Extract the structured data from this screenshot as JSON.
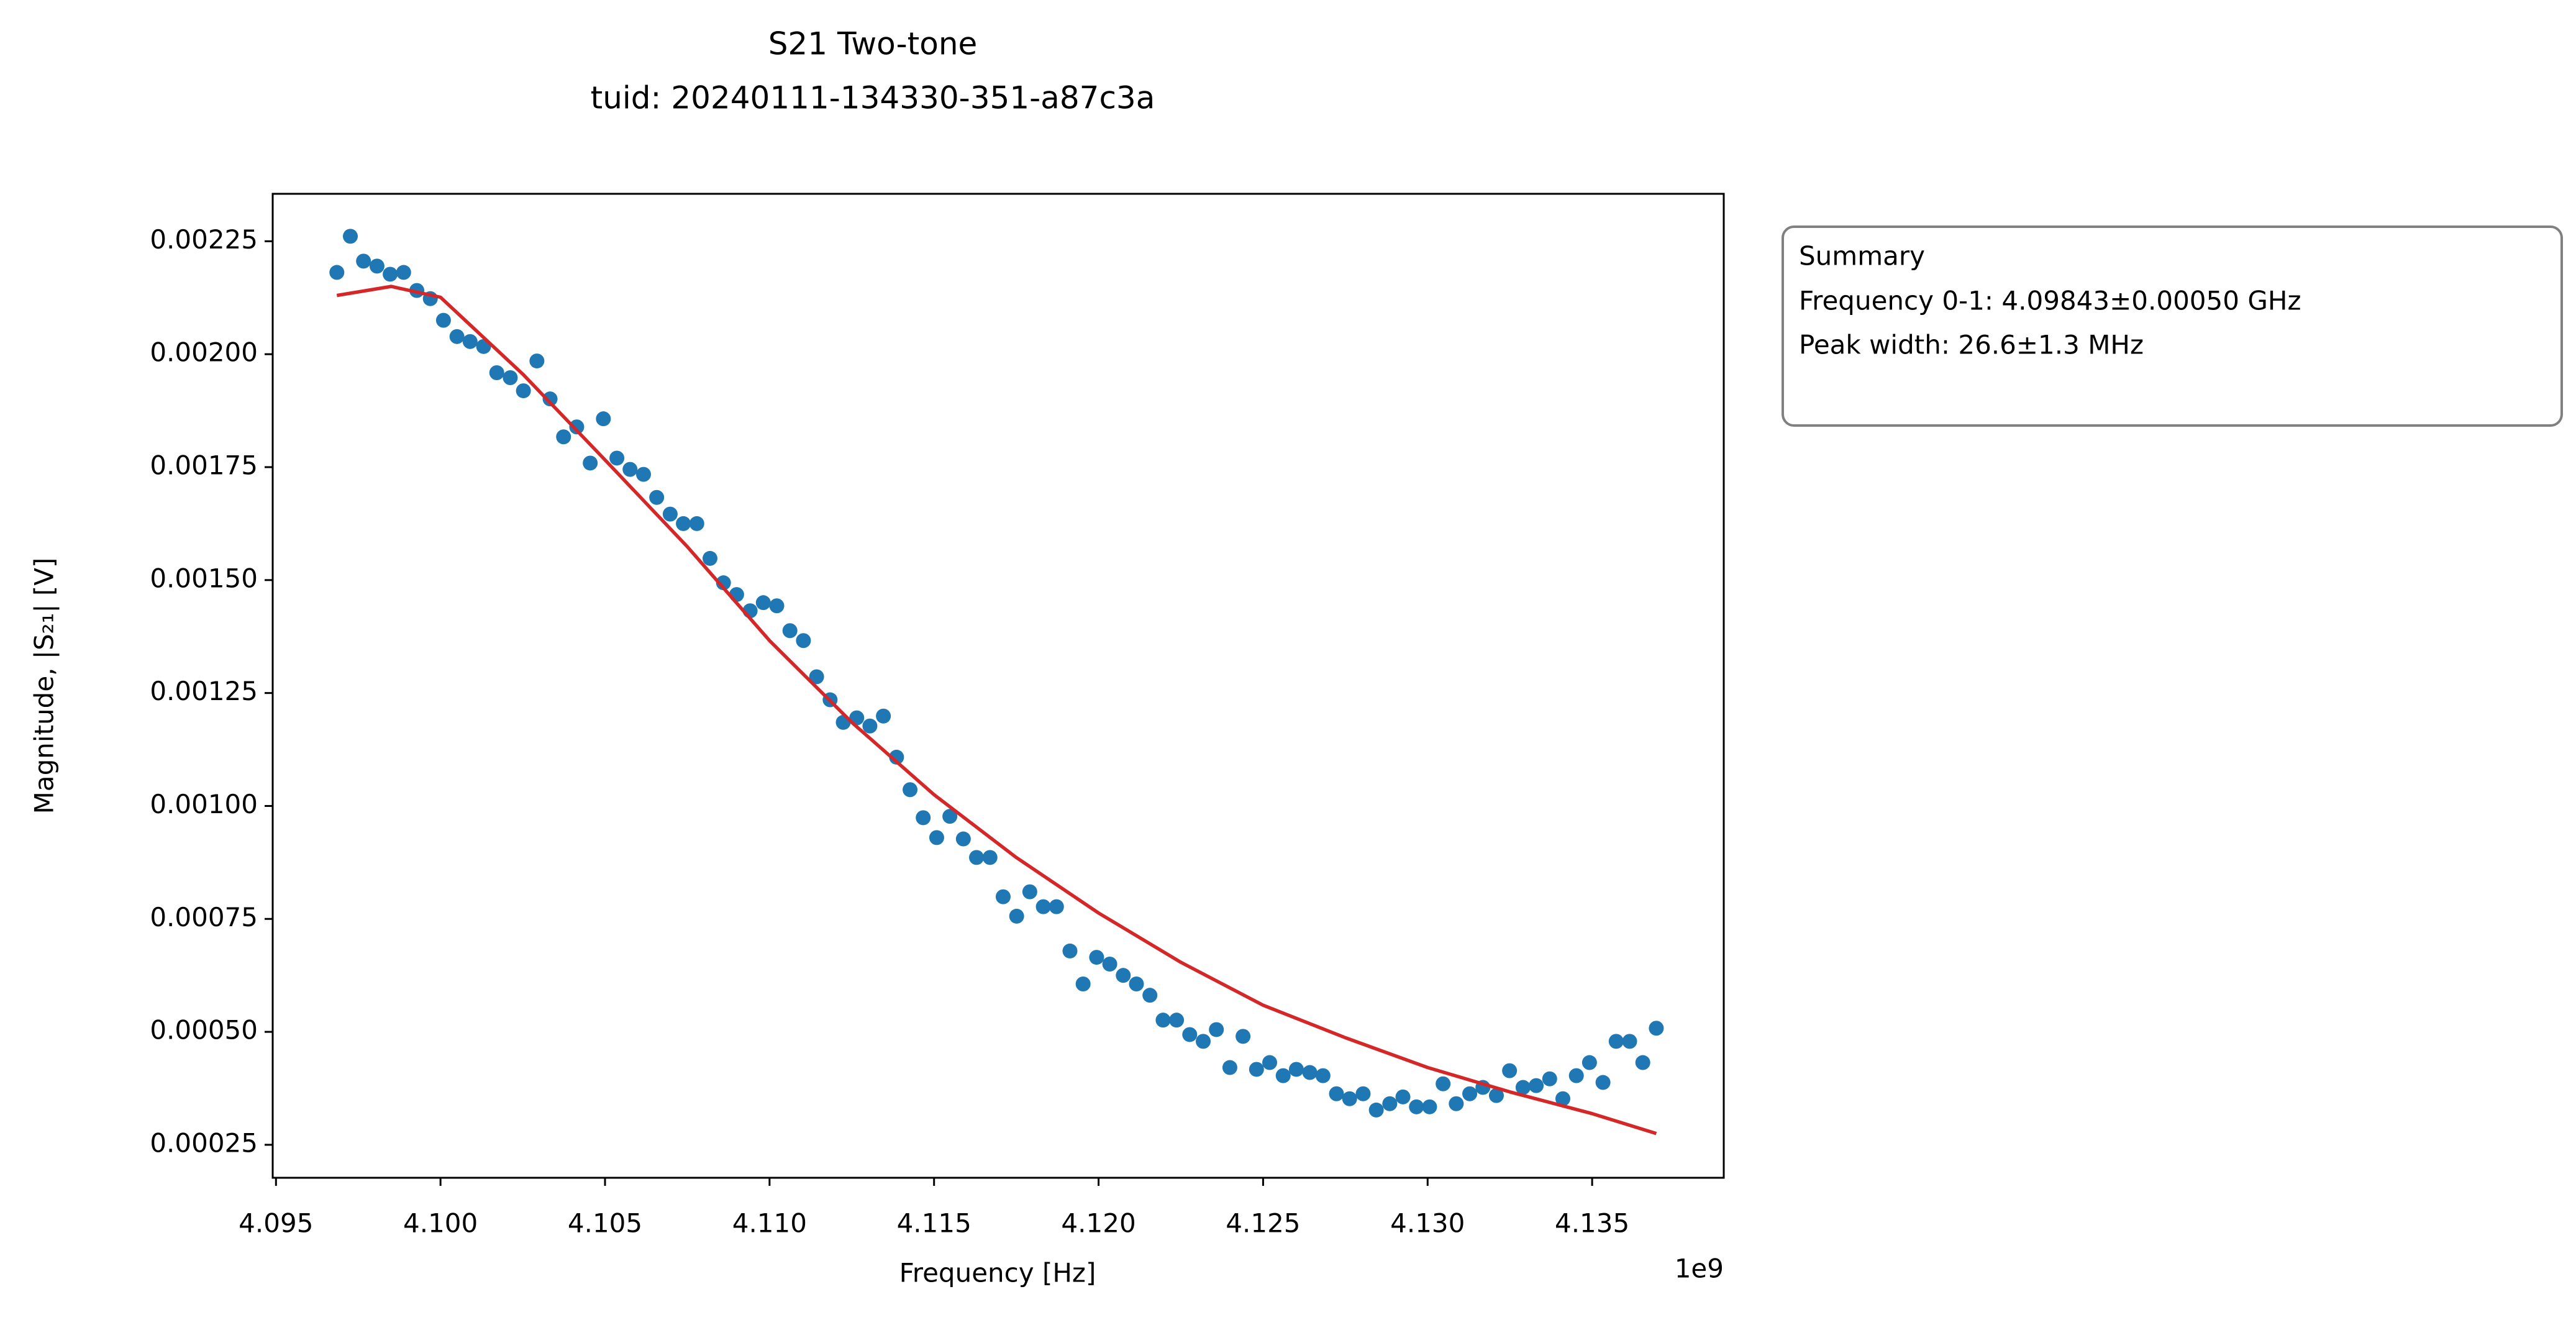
{
  "chart_data": {
    "type": "scatter",
    "title": "S21 Two-tone",
    "subtitle": "tuid: 20240111-134330-351-a87c3a",
    "x_label": "Frequency [Hz]",
    "y_label": "Magnitude, |S₂₁| [V]",
    "x_offset": "1e9",
    "summary": [
      "Summary",
      "Frequency 0-1: 4.09843±0.00050 GHz",
      "Peak width: 26.6±1.3 MHz"
    ],
    "xlim": [
      4.0949,
      4.139
    ],
    "ylim": [
      0.000177,
      0.002355
    ],
    "xticks": [
      4.095,
      {
        "value": 4.1,
        "label": "4.100"
      },
      4.105,
      {
        "value": 4.11,
        "label": "4.110"
      },
      4.115,
      {
        "value": 4.12,
        "label": "4.120"
      },
      4.125,
      {
        "value": 4.13,
        "label": "4.130"
      },
      4.135
    ],
    "yticks": [
      0.00025,
      {
        "value": 0.0005,
        "label": "0.00050"
      },
      0.00075,
      {
        "value": 0.001,
        "label": "0.00100"
      },
      0.00125,
      {
        "value": 0.0015,
        "label": "0.00150"
      },
      0.00175,
      {
        "value": 0.002,
        "label": "0.00200"
      },
      0.00225
    ],
    "series": [
      {
        "color": "#1f77b4",
        "style": "points",
        "x": [
          4.09685,
          4.09726,
          4.09766,
          4.09807,
          4.09847,
          4.09888,
          4.09928,
          4.09969,
          4.10009,
          4.1005,
          4.1009,
          4.10131,
          4.10171,
          4.10212,
          4.10252,
          4.10293,
          4.10333,
          4.10374,
          4.10414,
          4.10455,
          4.10495,
          4.10536,
          4.10576,
          4.10617,
          4.10657,
          4.10698,
          4.10738,
          4.10779,
          4.10819,
          4.1086,
          4.109,
          4.10941,
          4.10981,
          4.11022,
          4.11062,
          4.11103,
          4.11143,
          4.11184,
          4.11224,
          4.11265,
          4.11305,
          4.11346,
          4.11386,
          4.11427,
          4.11467,
          4.11508,
          4.11548,
          4.11589,
          4.11629,
          4.1167,
          4.1171,
          4.11751,
          4.11791,
          4.11832,
          4.11872,
          4.11913,
          4.11953,
          4.11994,
          4.12034,
          4.12075,
          4.12115,
          4.12156,
          4.12196,
          4.12237,
          4.12277,
          4.12318,
          4.12358,
          4.12399,
          4.12439,
          4.1248,
          4.1252,
          4.12561,
          4.12601,
          4.12642,
          4.12682,
          4.12723,
          4.12763,
          4.12804,
          4.12844,
          4.12885,
          4.12925,
          4.12966,
          4.13006,
          4.13047,
          4.13087,
          4.13128,
          4.13168,
          4.13209,
          4.13249,
          4.1329,
          4.1333,
          4.13371,
          4.13411,
          4.13452,
          4.13492,
          4.13533,
          4.13573,
          4.13614,
          4.13654,
          4.13695
        ],
        "values": [
          0.002181,
          0.002261,
          0.002206,
          0.002195,
          0.002177,
          0.002181,
          0.002141,
          0.002123,
          0.002075,
          0.002039,
          0.002028,
          0.002017,
          0.001959,
          0.001948,
          0.001919,
          0.001985,
          0.001901,
          0.001817,
          0.001839,
          0.001759,
          0.001857,
          0.00177,
          0.001745,
          0.001734,
          0.001683,
          0.001646,
          0.001625,
          0.001625,
          0.001548,
          0.001494,
          0.001468,
          0.001432,
          0.00145,
          0.001443,
          0.001388,
          0.001366,
          0.001286,
          0.001235,
          0.001185,
          0.001195,
          0.001177,
          0.001199,
          0.001108,
          0.001036,
          0.000974,
          0.00093,
          0.000977,
          0.000927,
          0.000886,
          0.000886,
          0.000799,
          0.000756,
          0.00081,
          0.000777,
          0.000777,
          0.000679,
          0.000606,
          0.000665,
          0.00065,
          0.000625,
          0.000606,
          0.000581,
          0.000526,
          0.000526,
          0.000494,
          0.000479,
          0.000505,
          0.000421,
          0.00049,
          0.000417,
          0.000432,
          0.000403,
          0.000417,
          0.00041,
          0.000403,
          0.000363,
          0.000352,
          0.000363,
          0.000327,
          0.000341,
          0.000356,
          0.000334,
          0.000334,
          0.000385,
          0.000341,
          0.000363,
          0.000377,
          0.000359,
          0.000414,
          0.000377,
          0.000381,
          0.000396,
          0.000352,
          0.000403,
          0.000432,
          0.000388,
          0.000479,
          0.000479,
          0.000432,
          0.000508
        ]
      },
      {
        "color": "#d62728",
        "style": "line",
        "x": [
          4.09685,
          4.0985,
          4.1,
          4.1025,
          4.105,
          4.1075,
          4.11,
          4.1125,
          4.115,
          4.1175,
          4.12,
          4.1225,
          4.125,
          4.1275,
          4.13,
          4.1325,
          4.135,
          4.13695
        ],
        "values": [
          0.00213,
          0.00215,
          0.002126,
          0.001956,
          0.001766,
          0.001574,
          0.001366,
          0.001185,
          0.001025,
          0.000886,
          0.000763,
          0.000654,
          0.000559,
          0.000487,
          0.000421,
          0.000367,
          0.000319,
          0.000275
        ]
      }
    ]
  }
}
